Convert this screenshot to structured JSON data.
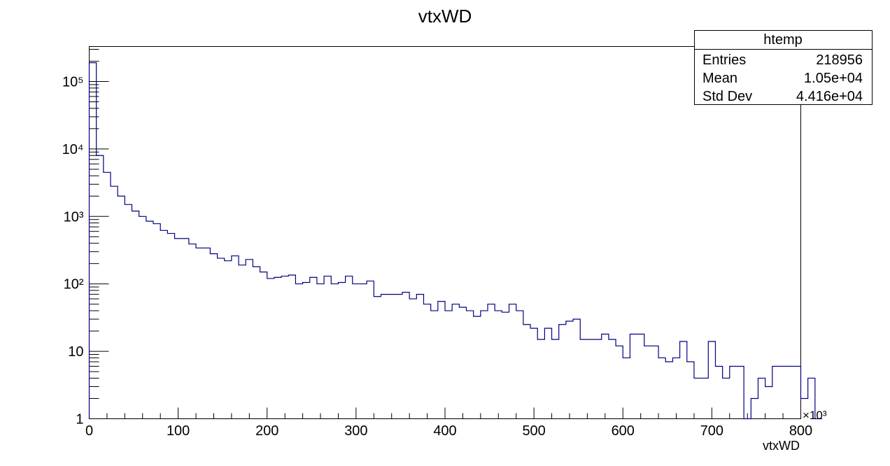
{
  "chart_data": {
    "type": "bar",
    "title": "vtxWD",
    "xlabel": "vtxWD",
    "x_multiplier": "×10³",
    "xlim": [
      0,
      800
    ],
    "ylim": [
      1,
      330000
    ],
    "log_y": true,
    "line_color": "#000080",
    "bin_width": 8,
    "x_ticks": [
      0,
      100,
      200,
      300,
      400,
      500,
      600,
      700,
      800
    ],
    "y_ticks": [
      {
        "value": 1,
        "label": "1"
      },
      {
        "value": 10,
        "label": "10"
      },
      {
        "value": 100,
        "label": "10²"
      },
      {
        "value": 1000,
        "label": "10³"
      },
      {
        "value": 10000,
        "label": "10⁴"
      },
      {
        "value": 100000,
        "label": "10⁵"
      }
    ],
    "bin_edges_start": 0,
    "values": [
      190000,
      8000,
      4500,
      2800,
      2000,
      1500,
      1200,
      1000,
      850,
      780,
      620,
      560,
      470,
      470,
      390,
      340,
      340,
      280,
      240,
      220,
      260,
      190,
      230,
      180,
      150,
      120,
      125,
      130,
      135,
      100,
      105,
      125,
      100,
      130,
      100,
      105,
      130,
      100,
      100,
      110,
      65,
      70,
      70,
      70,
      75,
      60,
      70,
      50,
      40,
      55,
      40,
      50,
      45,
      40,
      33,
      40,
      50,
      40,
      38,
      50,
      40,
      25,
      22,
      15,
      22,
      15,
      25,
      28,
      30,
      15,
      15,
      15,
      18,
      15,
      12,
      8,
      18,
      18,
      12,
      12,
      8,
      7,
      8,
      14,
      7,
      4,
      4,
      14,
      6,
      4,
      6,
      6,
      0.1,
      2,
      4,
      3,
      6,
      6,
      6,
      6,
      2,
      4,
      0.1
    ],
    "stats": {
      "title": "htemp",
      "rows": [
        {
          "label": "Entries",
          "value": "218956"
        },
        {
          "label": "Mean",
          "value": "1.05e+04"
        },
        {
          "label": "Std Dev",
          "value": "4.416e+04"
        }
      ]
    }
  }
}
